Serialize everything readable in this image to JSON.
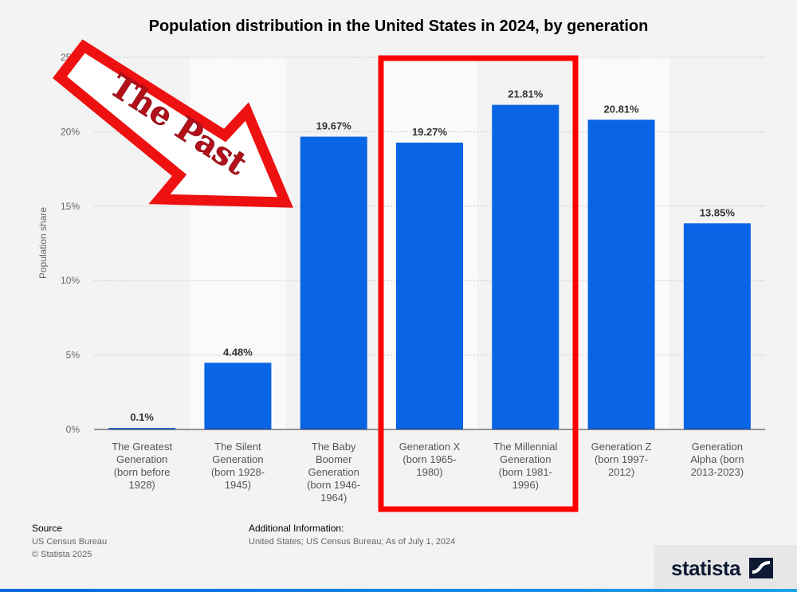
{
  "chart_data": {
    "type": "bar",
    "title": "Population distribution in the United States in 2024, by generation",
    "xlabel": "",
    "ylabel": "Population share",
    "ylim": [
      0,
      25
    ],
    "yticks": [
      "0%",
      "5%",
      "10%",
      "15%",
      "20%",
      "25%"
    ],
    "grid": true,
    "bar_color": "#0a64e6",
    "categories": [
      [
        "The Greatest",
        "Generation",
        "(born before",
        "1928)"
      ],
      [
        "The Silent",
        "Generation",
        "(born 1928-",
        "1945)"
      ],
      [
        "The Baby",
        "Boomer",
        "Generation",
        "(born 1946-",
        "1964)"
      ],
      [
        "Generation X",
        "(born 1965-",
        "1980)"
      ],
      [
        "The Millennial",
        "Generation",
        "(born 1981-",
        "1996)"
      ],
      [
        "Generation Z",
        "(born 1997-",
        "2012)"
      ],
      [
        "Generation",
        "Alpha (born",
        "2013-2023)"
      ]
    ],
    "values": [
      0.1,
      4.48,
      19.67,
      19.27,
      21.81,
      20.81,
      13.85
    ],
    "data_labels": [
      "0.1%",
      "4.48%",
      "19.67%",
      "19.27%",
      "21.81%",
      "20.81%",
      "13.85%"
    ],
    "annotations": [
      {
        "type": "arrow",
        "text": "The Past",
        "color": "#ee1111"
      },
      {
        "type": "highlight-box",
        "around": [
          "Generation X",
          "The Millennial Generation"
        ],
        "color": "#ff0000"
      }
    ]
  },
  "footer": {
    "source_label": "Source",
    "source_lines": [
      "US Census Bureau",
      "© Statista 2025"
    ],
    "additional_label": "Additional Information:",
    "additional_text": "United States; US Census Bureau; As of July 1, 2024"
  },
  "brand": {
    "name": "statista",
    "accent": "#0e1a33"
  }
}
